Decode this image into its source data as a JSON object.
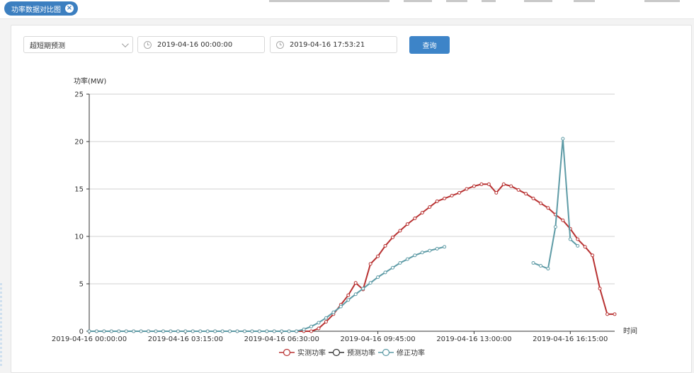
{
  "tab": {
    "label": "功率数据对比图",
    "close_icon": "close-icon"
  },
  "filters": {
    "forecast_type": "超短期预测",
    "start_time": "2019-04-16 00:00:00",
    "end_time": "2019-04-16 17:53:21",
    "query_label": "查询"
  },
  "chart_data": {
    "type": "line",
    "title": "",
    "ylabel": "功率(MW)",
    "xlabel": "时间",
    "ylim": [
      0,
      25
    ],
    "yticks": [
      0,
      5,
      10,
      15,
      20,
      25
    ],
    "xticks": [
      "2019-04-16 00:00:00",
      "2019-04-16 03:15:00",
      "2019-04-16 06:30:00",
      "2019-04-16 09:45:00",
      "2019-04-16 13:00:00",
      "2019-04-16 16:15:00"
    ],
    "grid": true,
    "legend_position": "bottom",
    "series": [
      {
        "name": "实测功率",
        "color": "#b83232",
        "x": [
          0,
          15,
          30,
          45,
          60,
          75,
          90,
          105,
          120,
          135,
          150,
          165,
          180,
          195,
          210,
          225,
          240,
          255,
          270,
          285,
          300,
          315,
          330,
          345,
          360,
          375,
          390,
          405,
          420,
          435,
          450,
          465,
          480,
          495,
          510,
          525,
          540,
          555,
          570,
          585,
          600,
          615,
          630,
          645,
          660,
          675,
          690,
          705,
          720,
          735,
          750,
          765,
          780,
          795,
          810,
          825,
          840,
          855,
          870,
          885,
          900,
          915,
          930,
          945,
          960,
          975,
          990,
          1005,
          1020,
          1035,
          1050,
          1065
        ],
        "values": [
          0,
          0,
          0,
          0,
          0,
          0,
          0,
          0,
          0,
          0,
          0,
          0,
          0,
          0,
          0,
          0,
          0,
          0,
          0,
          0,
          0,
          0,
          0,
          0,
          0,
          0,
          0,
          0,
          0,
          0,
          0,
          0.3,
          1.0,
          1.8,
          2.8,
          3.8,
          5.1,
          4.4,
          7.1,
          7.9,
          9.0,
          9.9,
          10.6,
          11.3,
          11.9,
          12.5,
          13.1,
          13.7,
          14.0,
          14.3,
          14.6,
          15.0,
          15.3,
          15.5,
          15.5,
          14.6,
          15.5,
          15.3,
          14.9,
          14.5,
          14.0,
          13.5,
          13.0,
          12.3,
          11.7,
          10.8,
          9.7,
          8.9,
          8.0,
          4.5,
          1.8,
          1.8
        ]
      },
      {
        "name": "预测功率",
        "color": "#333333",
        "x": [],
        "values": []
      },
      {
        "name": "修正功率",
        "color": "#5e9ba6",
        "x": [
          0,
          15,
          30,
          45,
          60,
          75,
          90,
          105,
          120,
          135,
          150,
          165,
          180,
          195,
          210,
          225,
          240,
          255,
          270,
          285,
          300,
          315,
          330,
          345,
          360,
          375,
          390,
          405,
          420,
          435,
          450,
          465,
          480,
          495,
          510,
          525,
          540,
          555,
          570,
          585,
          600,
          615,
          630,
          645,
          660,
          675,
          690,
          705,
          720
        ],
        "values": [
          0,
          0,
          0,
          0,
          0,
          0,
          0,
          0,
          0,
          0,
          0,
          0,
          0,
          0,
          0,
          0,
          0,
          0,
          0,
          0,
          0,
          0,
          0,
          0,
          0,
          0,
          0,
          0,
          0,
          0.2,
          0.5,
          0.9,
          1.4,
          2.0,
          2.6,
          3.3,
          3.9,
          4.5,
          5.1,
          5.7,
          6.2,
          6.7,
          7.2,
          7.6,
          8.0,
          8.3,
          8.5,
          8.7,
          8.9
        ],
        "x2": [
          900,
          915,
          930,
          945,
          960,
          975,
          990
        ],
        "values2": [
          7.2,
          6.9,
          6.6,
          11.0,
          20.3,
          9.7,
          9.0
        ]
      }
    ]
  }
}
